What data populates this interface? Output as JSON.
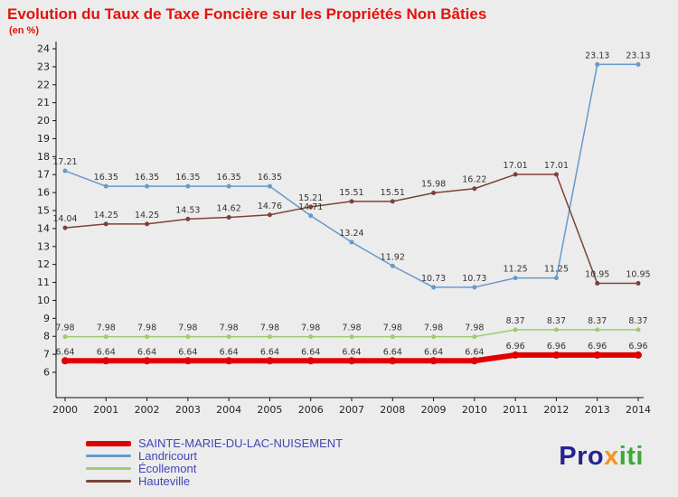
{
  "header": {
    "title": "Evolution du Taux de Taxe Foncière sur les Propriétés Non Bâties",
    "subtitle": "(en %)"
  },
  "colors": {
    "title": "#e3120b",
    "background": "#ececec",
    "legend_text": "#4545b8",
    "axis": "#111111",
    "data_label": "#333333",
    "tick_label": "#222222"
  },
  "chart_data": {
    "type": "line",
    "x": [
      2000,
      2001,
      2002,
      2003,
      2004,
      2005,
      2006,
      2007,
      2008,
      2009,
      2010,
      2011,
      2012,
      2013,
      2014
    ],
    "ylim": [
      6,
      24
    ],
    "y_tick_step": 1,
    "grid": false,
    "legend_position": "bottom",
    "series": [
      {
        "name": "SAINTE-MARIE-DU-LAC-NUISEMENT",
        "color": "#e00000",
        "line_width": 6,
        "marker_size": 4,
        "values": [
          6.64,
          6.64,
          6.64,
          6.64,
          6.64,
          6.64,
          6.64,
          6.64,
          6.64,
          6.64,
          6.64,
          6.96,
          6.96,
          6.96,
          6.96
        ]
      },
      {
        "name": "Landricourt",
        "color": "#6699cc",
        "line_width": 1.5,
        "marker_size": 2.5,
        "values": [
          17.21,
          16.35,
          16.35,
          16.35,
          16.35,
          16.35,
          14.71,
          13.24,
          11.92,
          10.73,
          10.73,
          11.25,
          11.25,
          23.13,
          23.13
        ]
      },
      {
        "name": "Écollemont",
        "color": "#9ccc6c",
        "line_width": 1.5,
        "marker_size": 2.5,
        "values": [
          7.98,
          7.98,
          7.98,
          7.98,
          7.98,
          7.98,
          7.98,
          7.98,
          7.98,
          7.98,
          7.98,
          8.37,
          8.37,
          8.37,
          8.37
        ]
      },
      {
        "name": "Hauteville",
        "color": "#7c4238",
        "line_width": 1.5,
        "marker_size": 2.5,
        "values": [
          14.04,
          14.25,
          14.25,
          14.53,
          14.62,
          14.76,
          15.21,
          15.51,
          15.51,
          15.98,
          16.22,
          17.01,
          17.01,
          10.95,
          10.95
        ]
      }
    ]
  },
  "logo": {
    "parts": [
      {
        "text": "Pro",
        "color": "#24248f"
      },
      {
        "text": "x",
        "color": "#f7941d"
      },
      {
        "text": "iti",
        "color": "#3aaa35"
      }
    ]
  }
}
